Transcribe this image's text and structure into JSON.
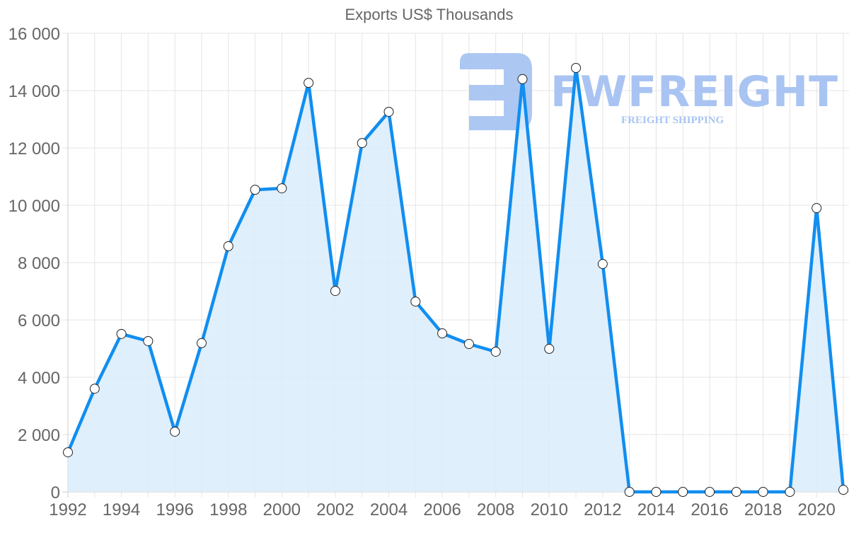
{
  "chart_data": {
    "type": "line",
    "title": "Exports US$ Thousands",
    "xlabel": "",
    "ylabel": "",
    "ylim": [
      0,
      16000
    ],
    "y_ticks": [
      "0",
      "2 000",
      "4 000",
      "6 000",
      "8 000",
      "10 000",
      "12 000",
      "14 000",
      "16 000"
    ],
    "y_tick_values": [
      0,
      2000,
      4000,
      6000,
      8000,
      10000,
      12000,
      14000,
      16000
    ],
    "x_tick_labels": [
      "1992",
      "1994",
      "1996",
      "1998",
      "2000",
      "2002",
      "2004",
      "2006",
      "2008",
      "2010",
      "2012",
      "2014",
      "2016",
      "2018",
      "2020"
    ],
    "categories": [
      1992,
      1993,
      1994,
      1995,
      1996,
      1997,
      1998,
      1999,
      2000,
      2001,
      2002,
      2003,
      2004,
      2005,
      2006,
      2007,
      2008,
      2009,
      2010,
      2011,
      2012,
      2013,
      2014,
      2015,
      2016,
      2017,
      2018,
      2019,
      2020,
      2021
    ],
    "series": [
      {
        "name": "Exports US$ Thousands",
        "values": [
          1380,
          3600,
          5510,
          5260,
          2100,
          5190,
          8570,
          10540,
          10590,
          14270,
          7010,
          12170,
          13260,
          6640,
          5530,
          5160,
          4890,
          14400,
          4990,
          14790,
          7950,
          0,
          0,
          0,
          0,
          0,
          0,
          0,
          9900,
          70
        ],
        "line_color": "#118ef0",
        "fill_color": "#d9ecfc",
        "point_fill": "#ffffff",
        "point_stroke": "#222222"
      }
    ],
    "grid": true,
    "legend": "none",
    "fill": "area-under-line"
  },
  "watermark": {
    "brand": "FWFREIGHT",
    "tagline": "FREIGHT SHIPPING",
    "color": "#a9c4f2"
  }
}
